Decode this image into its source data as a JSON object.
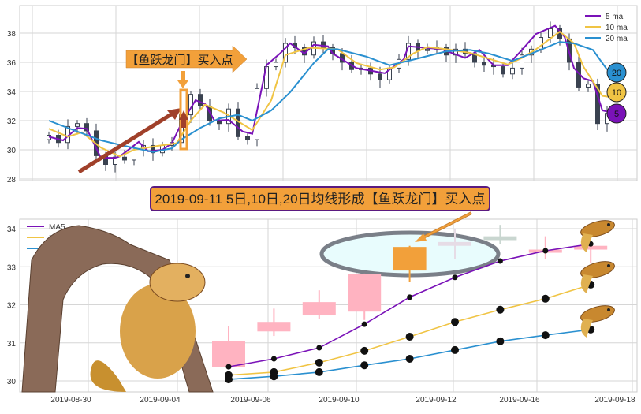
{
  "colors": {
    "ma5": "#7a12b8",
    "ma10": "#f0c444",
    "ma20": "#2a90d0",
    "up": "#ffb3c1",
    "highlight": "#f2a03a",
    "candle_top": "#3a4250",
    "banner_border": "#5a1a80"
  },
  "top_annotation": "【鱼跃龙门】买入点",
  "banner": "2019-09-11 5日,10日,20日均线形成【鱼跃龙门】买入点",
  "badges": [
    "20",
    "10",
    "5"
  ],
  "chart_data": [
    {
      "type": "candlestick+line",
      "ylim": [
        28,
        39
      ],
      "yticks": [
        "28",
        "30",
        "32",
        "34",
        "36",
        "38"
      ],
      "grid": true,
      "legend": {
        "placement": "top-right",
        "entries": [
          "5 ma",
          "10 ma",
          "20 ma"
        ]
      },
      "closes": [
        31.0,
        30.5,
        31.6,
        31.8,
        31.3,
        29.6,
        29.0,
        29.5,
        29.3,
        30.0,
        30.3,
        29.8,
        30.3,
        30.5,
        32.4,
        33.8,
        33.0,
        32.0,
        31.8,
        32.8,
        30.9,
        30.7,
        34.2,
        35.7,
        36.0,
        37.3,
        37.0,
        36.5,
        37.4,
        37.0,
        36.6,
        36.0,
        35.5,
        35.6,
        35.2,
        34.8,
        35.6,
        36.2,
        37.3,
        36.8,
        36.9,
        37.0,
        36.5,
        36.9,
        36.6,
        36.0,
        35.8,
        35.7,
        35.2,
        35.6,
        36.5,
        36.9,
        37.7,
        38.3,
        37.6,
        36.0,
        34.3,
        34.5,
        31.8,
        32.5
      ],
      "series": [
        {
          "name": "5 ma",
          "points": [
            [
              0,
              30.9
            ],
            [
              3,
              30.65
            ],
            [
              6,
              31.5
            ],
            [
              8,
              31.45
            ],
            [
              11,
              29.45
            ],
            [
              14,
              29.45
            ],
            [
              15,
              29.55
            ],
            [
              19,
              30.55
            ],
            [
              21,
              29.9
            ],
            [
              24,
              30.0
            ],
            [
              26,
              30.45
            ],
            [
              28,
              31.8
            ],
            [
              31,
              33.4
            ],
            [
              33,
              33.15
            ],
            [
              35,
              32.0
            ],
            [
              38,
              32.05
            ],
            [
              41,
              31.25
            ],
            [
              43,
              31.1
            ],
            [
              46,
              35.8
            ],
            [
              49,
              36.65
            ],
            [
              51,
              37.3
            ],
            [
              54,
              36.6
            ],
            [
              56,
              37.2
            ],
            [
              59,
              37.1
            ],
            [
              60,
              36.6
            ],
            [
              65,
              35.6
            ],
            [
              71,
              35.25
            ],
            [
              75,
              36.2
            ],
            [
              76,
              37.1
            ],
            [
              83,
              36.9
            ],
            [
              88,
              36.3
            ],
            [
              91,
              36.85
            ],
            [
              94,
              35.8
            ],
            [
              97,
              35.8
            ],
            [
              100,
              36.85
            ],
            [
              103,
              37.95
            ],
            [
              107,
              38.5
            ],
            [
              109,
              37.75
            ],
            [
              111,
              35.6
            ],
            [
              113,
              34.9
            ],
            [
              115,
              34.7
            ],
            [
              117,
              32.7
            ],
            [
              119,
              32.55
            ]
          ]
        },
        {
          "name": "10 ma",
          "points": [
            [
              0,
              31.45
            ],
            [
              4,
              30.9
            ],
            [
              7,
              31.2
            ],
            [
              11,
              30.15
            ],
            [
              15,
              29.55
            ],
            [
              18,
              30.0
            ],
            [
              23,
              30.27
            ],
            [
              27,
              30.45
            ],
            [
              30,
              32.0
            ],
            [
              33,
              33.1
            ],
            [
              37,
              32.55
            ],
            [
              43,
              31.35
            ],
            [
              47,
              33.4
            ],
            [
              50,
              36.5
            ],
            [
              55,
              37.0
            ],
            [
              61,
              36.9
            ],
            [
              65,
              35.95
            ],
            [
              70,
              35.5
            ],
            [
              73,
              35.65
            ],
            [
              77,
              36.6
            ],
            [
              80,
              37.05
            ],
            [
              84,
              36.9
            ],
            [
              89,
              36.65
            ],
            [
              97,
              35.85
            ],
            [
              100,
              36.3
            ],
            [
              103,
              36.9
            ],
            [
              108,
              38.1
            ],
            [
              111,
              37.3
            ],
            [
              113,
              35.7
            ],
            [
              117,
              33.7
            ],
            [
              119,
              33.6
            ]
          ]
        },
        {
          "name": "20 ma",
          "points": [
            [
              0,
              32.0
            ],
            [
              4,
              31.5
            ],
            [
              11,
              30.65
            ],
            [
              16,
              30.27
            ],
            [
              22,
              29.85
            ],
            [
              26,
              30.1
            ],
            [
              28,
              30.7
            ],
            [
              32,
              31.5
            ],
            [
              36,
              32.15
            ],
            [
              40,
              32.4
            ],
            [
              43,
              32.0
            ],
            [
              47,
              32.7
            ],
            [
              51,
              33.95
            ],
            [
              56,
              35.95
            ],
            [
              59,
              36.9
            ],
            [
              61,
              36.9
            ],
            [
              67,
              36.4
            ],
            [
              72,
              35.8
            ],
            [
              76,
              36.1
            ],
            [
              84,
              36.75
            ],
            [
              89,
              36.85
            ],
            [
              93,
              36.6
            ],
            [
              98,
              36.1
            ],
            [
              102,
              36.6
            ],
            [
              108,
              37.4
            ],
            [
              111,
              37.3
            ],
            [
              115,
              36.85
            ],
            [
              118,
              35.5
            ]
          ]
        }
      ]
    },
    {
      "type": "candlestick+line",
      "ylim": [
        29.75,
        34.25
      ],
      "yticks": [
        "30",
        "31",
        "32",
        "33",
        "34"
      ],
      "xticks": [
        "2019-08-30",
        "2019-09-04",
        "2019-09-06",
        "2019-09-10",
        "2019-09-12",
        "2019-09-16",
        "2019-09-18"
      ],
      "grid": true,
      "legend": {
        "placement": "top-left",
        "entries": [
          "MA5",
          "MA10",
          "MA20"
        ]
      },
      "candles": [
        {
          "o": 30.37,
          "c": 31.05,
          "h": 31.45,
          "l": 30.3,
          "color": "#ffb3c1"
        },
        {
          "o": 31.3,
          "c": 31.55,
          "h": 31.9,
          "l": 31.18,
          "color": "#ffb3c1"
        },
        {
          "o": 31.72,
          "c": 32.07,
          "h": 32.38,
          "l": 31.62,
          "color": "#ffb3c1"
        },
        {
          "o": 31.82,
          "c": 32.8,
          "h": 32.82,
          "l": 31.6,
          "color": "#ffb3c1"
        },
        {
          "o": 32.9,
          "c": 33.52,
          "h": 33.55,
          "l": 32.6,
          "color": "#f2a03a"
        },
        {
          "o": 33.55,
          "c": 33.65,
          "h": 34.0,
          "l": 33.2,
          "color": "#e6dce6"
        },
        {
          "o": 33.7,
          "c": 33.8,
          "h": 34.1,
          "l": 33.6,
          "color": "#c9d6d0"
        },
        {
          "o": 33.4,
          "c": 33.45,
          "h": 33.8,
          "l": 33.2,
          "color": "#ffb3c1"
        },
        {
          "o": 33.45,
          "c": 33.55,
          "h": 33.6,
          "l": 33.1,
          "color": "#ffb3c1"
        }
      ],
      "series": [
        {
          "name": "MA5",
          "values": [
            30.37,
            30.58,
            30.87,
            31.49,
            32.2,
            32.72,
            33.15,
            33.42,
            33.6
          ]
        },
        {
          "name": "MA10",
          "values": [
            30.15,
            30.23,
            30.48,
            30.79,
            31.16,
            31.55,
            31.87,
            32.16,
            32.53
          ]
        },
        {
          "name": "MA20",
          "values": [
            30.04,
            30.12,
            30.23,
            30.41,
            30.58,
            30.81,
            31.04,
            31.2,
            31.35
          ]
        }
      ]
    }
  ]
}
